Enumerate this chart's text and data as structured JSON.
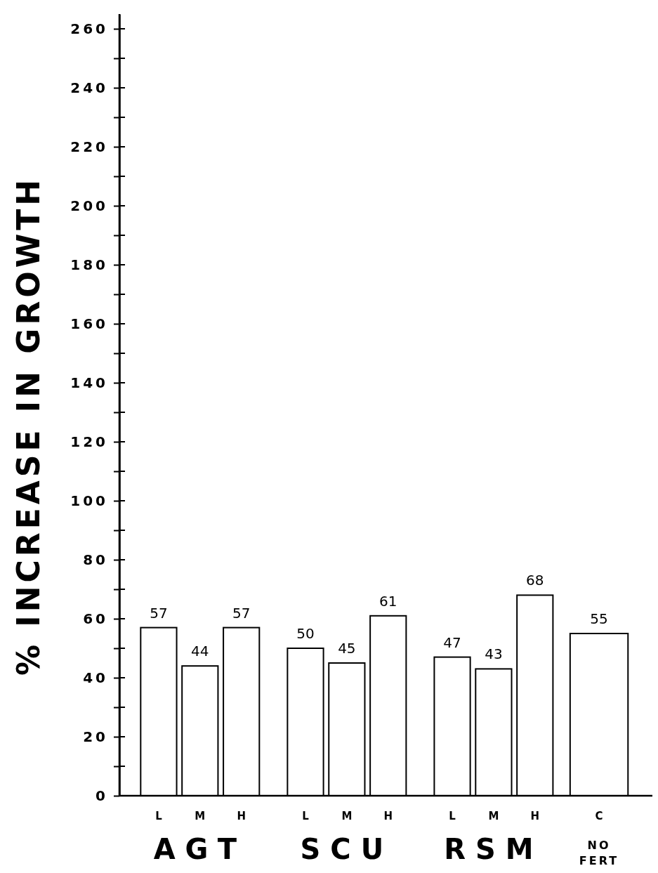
{
  "chart_data": {
    "type": "bar",
    "ylabel": "% INCREASE IN GROWTH",
    "categories": [
      "L",
      "M",
      "H",
      "L",
      "M",
      "H",
      "L",
      "M",
      "H",
      "C"
    ],
    "values": [
      57,
      44,
      57,
      50,
      45,
      61,
      47,
      43,
      68,
      55
    ],
    "color": "#ffffff",
    "data_labels": true,
    "ylim": [
      0,
      265
    ],
    "yticks": [
      0,
      {
        "value": 10,
        "label": null
      },
      20,
      {
        "value": 30,
        "label": null
      },
      40,
      {
        "value": 50,
        "label": null
      },
      60,
      {
        "value": 70,
        "label": null
      },
      80,
      {
        "value": 90,
        "label": null
      },
      100,
      {
        "value": 110,
        "label": null
      },
      120,
      {
        "value": 130,
        "label": null
      },
      140,
      {
        "value": 150,
        "label": null
      },
      160,
      {
        "value": 170,
        "label": null
      },
      180,
      {
        "value": 190,
        "label": null
      },
      200,
      {
        "value": 210,
        "label": null
      },
      220,
      {
        "value": 230,
        "label": null
      },
      240,
      {
        "value": 250,
        "label": null
      },
      260
    ],
    "annotations": [
      "AGT",
      "SCU",
      "RSM",
      "NO FERT"
    ],
    "grid": false
  }
}
